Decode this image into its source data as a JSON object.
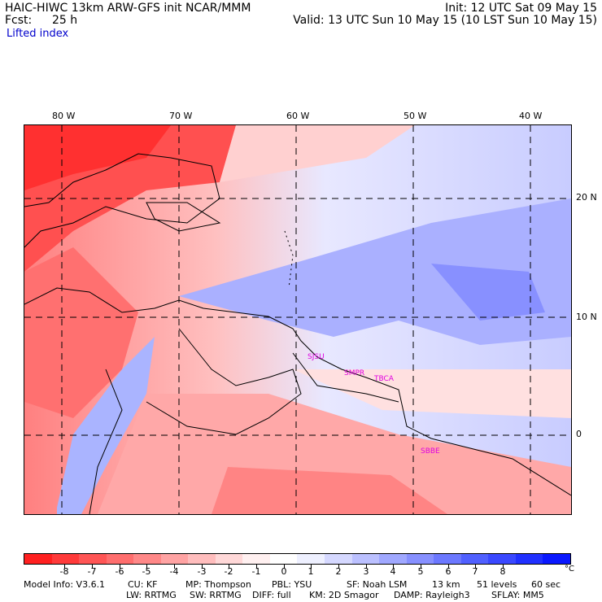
{
  "header": {
    "title": "HAIC-HIWC 13km ARW-GFS init   NCAR/MMM",
    "fcst_label": "Fcst:",
    "fcst_value": "25 h",
    "init": "Init: 12 UTC Sat 09 May 15",
    "valid": "Valid: 13 UTC Sun 10 May 15 (10 LST Sun 10 May 15)",
    "field": "Lifted index"
  },
  "map": {
    "lon_labels": [
      "80 W",
      "70 W",
      "60 W",
      "50 W",
      "40 W"
    ],
    "lat_labels": [
      "20 N",
      "10 N",
      "0"
    ],
    "stations": [
      "SJSU",
      "SMPR",
      "TBCA",
      "SBBE"
    ],
    "colors": {
      "land_line": "#000000",
      "grid_line": "#000000",
      "station": "#e000e0"
    }
  },
  "colorbar": {
    "colors": [
      "#ff2020",
      "#ff3a3a",
      "#ff5555",
      "#ff6e6e",
      "#ff8888",
      "#ffa3a3",
      "#ffbdbd",
      "#ffd8d8",
      "#fff0f0",
      "#ffffff",
      "#eef0ff",
      "#d5d8ff",
      "#bbc0ff",
      "#a0a8ff",
      "#8790ff",
      "#6c78ff",
      "#5060ff",
      "#3a48ff",
      "#2030ff",
      "#0a18ff"
    ],
    "tick_labels": [
      "-8",
      "-7",
      "-6",
      "-5",
      "-4",
      "-3",
      "-2",
      "-1",
      "0",
      "1",
      "2",
      "3",
      "4",
      "5",
      "6",
      "7",
      "8"
    ],
    "unit": "°C"
  },
  "footer": {
    "line1": [
      "Model Info: V3.6.1",
      "CU: KF",
      "MP: Thompson",
      "PBL: YSU",
      "SF: Noah LSM",
      "13 km",
      "51 levels",
      "60 sec"
    ],
    "line2": [
      "LW: RRTMG",
      "SW: RRTMG",
      "DIFF: full",
      "KM: 2D Smagor",
      "DAMP: Rayleigh3",
      "SFLAY: MM5"
    ]
  }
}
